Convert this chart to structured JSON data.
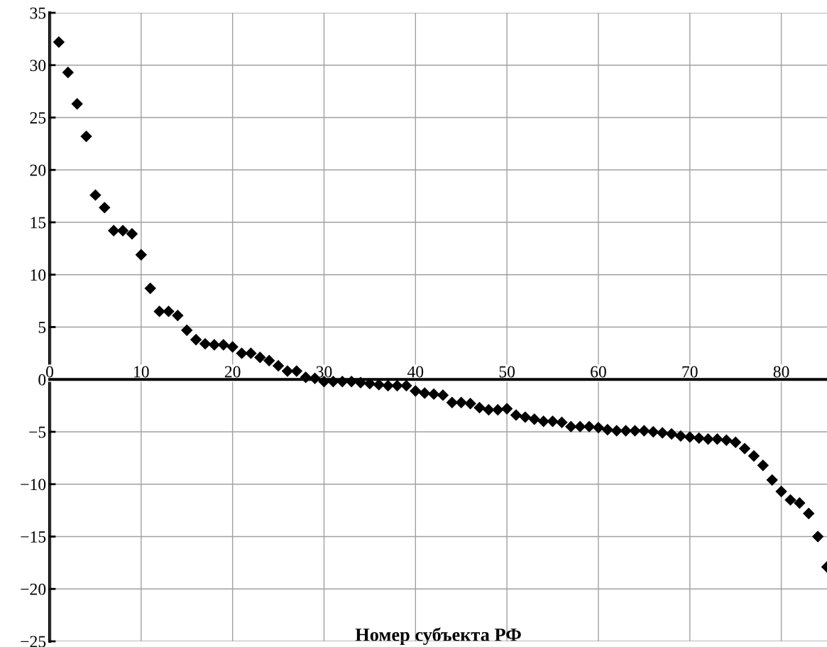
{
  "chart_data": {
    "type": "scatter",
    "xlabel": "Номер субъекта РФ",
    "x": [
      1,
      2,
      3,
      4,
      5,
      6,
      7,
      8,
      9,
      10,
      11,
      12,
      13,
      14,
      15,
      16,
      17,
      18,
      19,
      20,
      21,
      22,
      23,
      24,
      25,
      26,
      27,
      28,
      29,
      30,
      31,
      32,
      33,
      34,
      35,
      36,
      37,
      38,
      39,
      40,
      41,
      42,
      43,
      44,
      45,
      46,
      47,
      48,
      49,
      50,
      51,
      52,
      53,
      54,
      55,
      56,
      57,
      58,
      59,
      60,
      61,
      62,
      63,
      64,
      65,
      66,
      67,
      68,
      69,
      70,
      71,
      72,
      73,
      74,
      75,
      76,
      77,
      78,
      79,
      80,
      81,
      82,
      83,
      84,
      85
    ],
    "values": [
      32.2,
      29.3,
      26.3,
      23.2,
      17.6,
      16.4,
      14.2,
      14.2,
      13.9,
      11.9,
      8.7,
      6.5,
      6.5,
      6.1,
      4.7,
      3.8,
      3.4,
      3.3,
      3.3,
      3.1,
      2.5,
      2.5,
      2.1,
      1.8,
      1.3,
      0.8,
      0.8,
      0.2,
      0.1,
      -0.2,
      -0.2,
      -0.2,
      -0.2,
      -0.3,
      -0.4,
      -0.5,
      -0.6,
      -0.6,
      -0.6,
      -1.1,
      -1.3,
      -1.4,
      -1.5,
      -2.2,
      -2.2,
      -2.3,
      -2.7,
      -2.9,
      -2.9,
      -2.8,
      -3.4,
      -3.6,
      -3.8,
      -4.0,
      -4.0,
      -4.1,
      -4.5,
      -4.5,
      -4.5,
      -4.6,
      -4.8,
      -4.9,
      -4.9,
      -4.9,
      -4.9,
      -5.0,
      -5.1,
      -5.2,
      -5.4,
      -5.5,
      -5.6,
      -5.7,
      -5.7,
      -5.8,
      -6.0,
      -6.6,
      -7.3,
      -8.2,
      -9.6,
      -10.7,
      -11.5,
      -11.8,
      -12.8,
      -15.0,
      -17.9
    ],
    "color": "#000000",
    "marker": "diamond",
    "xlim": [
      0,
      85
    ],
    "ylim": [
      -25,
      35
    ],
    "xticks": [
      0,
      10,
      20,
      30,
      40,
      50,
      60,
      70,
      80
    ],
    "yticks": [
      {
        "value": -25,
        "label": "−25"
      },
      {
        "value": -20,
        "label": "−20"
      },
      {
        "value": -15,
        "label": "−15"
      },
      {
        "value": -10,
        "label": "−10"
      },
      {
        "value": -5,
        "label": "−5"
      },
      0,
      5,
      10,
      15,
      20,
      25,
      30,
      35
    ],
    "grid": true
  }
}
